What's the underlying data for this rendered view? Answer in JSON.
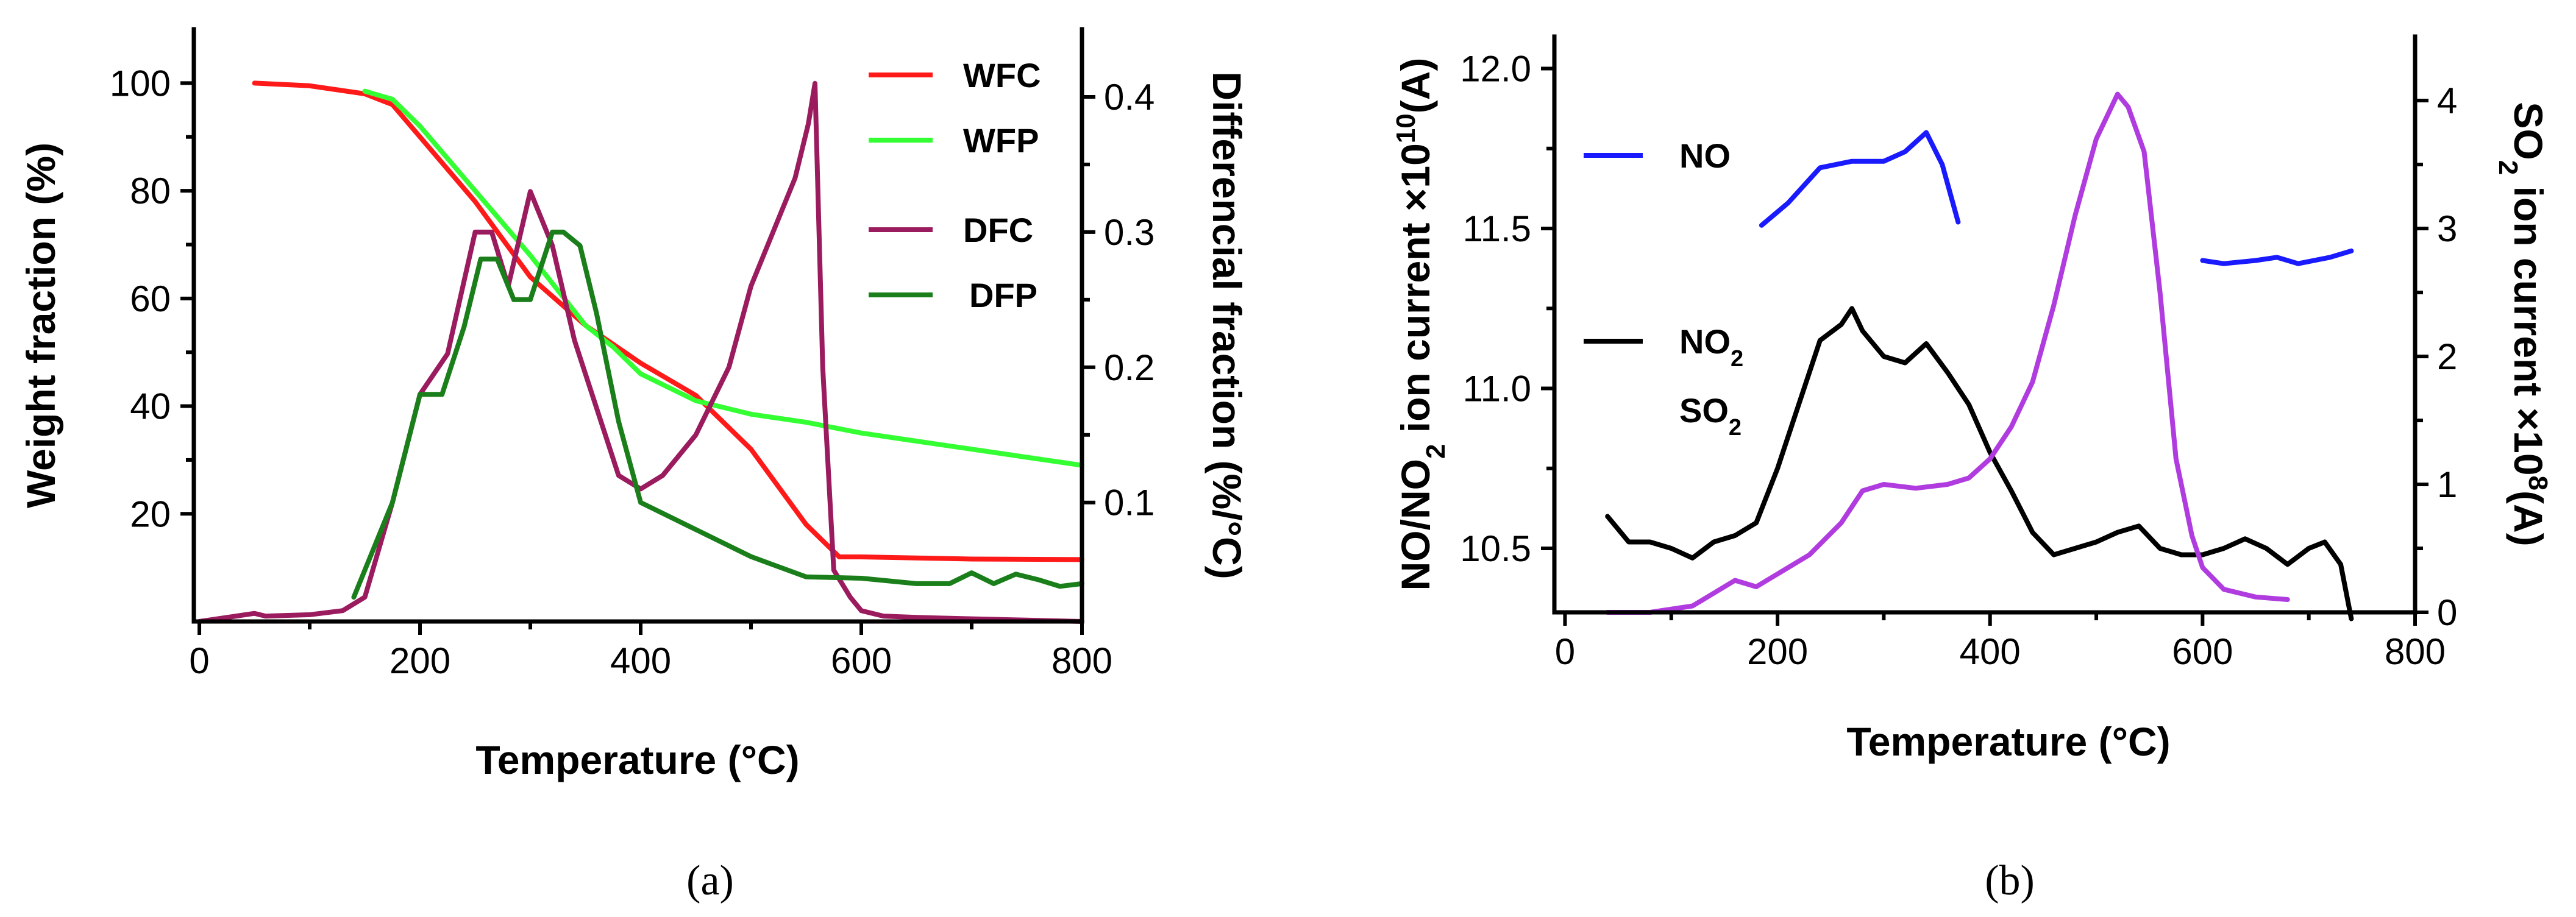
{
  "chart_data": [
    {
      "panel_label": "(a)",
      "type": "line",
      "xlabel": "Temperature (°C)",
      "ylabel": "Weight fraction (%)",
      "y2label": "Differencial fraction (%/°C)",
      "xlim": [
        -5,
        800
      ],
      "ylim": [
        0,
        110
      ],
      "y2lim": [
        0.012,
        0.45
      ],
      "xticks": [
        0,
        200,
        400,
        600,
        800
      ],
      "yticks": [
        20,
        40,
        60,
        80,
        100
      ],
      "y2ticks": [
        0.1,
        0.2,
        0.3,
        0.4
      ],
      "xtick_labels": [
        "0",
        "200",
        "400",
        "600",
        "800"
      ],
      "ytick_labels": [
        "20",
        "40",
        "60",
        "80",
        "100"
      ],
      "y2tick_labels": [
        "0.1",
        "0.2",
        "0.3",
        "0.4"
      ],
      "legend_position": "top-right",
      "series": [
        {
          "name": "WFC",
          "axis": "left",
          "color": "#ff1a1a",
          "x": [
            50,
            100,
            150,
            175,
            200,
            250,
            300,
            350,
            400,
            450,
            500,
            550,
            580,
            600,
            650,
            700,
            800
          ],
          "y": [
            100,
            99.5,
            98,
            96,
            90,
            78,
            64,
            55,
            48,
            42,
            32,
            18,
            12,
            12,
            11.8,
            11.6,
            11.5
          ]
        },
        {
          "name": "WFP",
          "axis": "left",
          "color": "#33ff33",
          "x": [
            150,
            175,
            200,
            250,
            300,
            350,
            375,
            400,
            450,
            500,
            550,
            600,
            650,
            700,
            750,
            800
          ],
          "y": [
            98.5,
            97,
            92,
            80,
            68,
            55,
            51,
            46,
            41,
            38.5,
            37,
            35,
            33.5,
            32,
            30.5,
            29
          ]
        },
        {
          "name": "DFC",
          "axis": "right",
          "color": "#9b1c5e",
          "x": [
            0,
            50,
            60,
            100,
            130,
            150,
            175,
            200,
            225,
            250,
            265,
            280,
            300,
            320,
            340,
            360,
            380,
            400,
            420,
            450,
            480,
            500,
            520,
            540,
            552,
            558,
            565,
            575,
            590,
            600,
            620,
            650,
            700,
            750,
            800
          ],
          "y": [
            0.012,
            0.018,
            0.016,
            0.017,
            0.02,
            0.03,
            0.1,
            0.18,
            0.21,
            0.3,
            0.3,
            0.26,
            0.33,
            0.29,
            0.22,
            0.17,
            0.12,
            0.11,
            0.12,
            0.15,
            0.2,
            0.26,
            0.3,
            0.34,
            0.38,
            0.41,
            0.2,
            0.05,
            0.03,
            0.02,
            0.016,
            0.015,
            0.014,
            0.013,
            0.012
          ]
        },
        {
          "name": "DFP",
          "axis": "right",
          "color": "#1a7f1a",
          "x": [
            140,
            175,
            200,
            220,
            240,
            255,
            270,
            285,
            300,
            320,
            330,
            345,
            360,
            380,
            400,
            450,
            500,
            550,
            600,
            650,
            680,
            700,
            720,
            740,
            760,
            780,
            800
          ],
          "y": [
            0.03,
            0.1,
            0.18,
            0.18,
            0.23,
            0.28,
            0.28,
            0.25,
            0.25,
            0.3,
            0.3,
            0.29,
            0.24,
            0.16,
            0.1,
            0.08,
            0.06,
            0.045,
            0.044,
            0.04,
            0.04,
            0.048,
            0.04,
            0.047,
            0.043,
            0.038,
            0.04
          ]
        }
      ]
    },
    {
      "panel_label": "(b)",
      "type": "line",
      "xlabel": "Temperature (°C)",
      "ylabel_parts": [
        "NO/NO",
        "2",
        " ion current ×10",
        "10",
        "(A)"
      ],
      "y2label_parts": [
        "SO",
        "2",
        " ion current ×10",
        "8",
        "(A)"
      ],
      "xlim": [
        -10,
        800
      ],
      "ylim": [
        10.3,
        12.1
      ],
      "y2lim": [
        0,
        4.5
      ],
      "xticks": [
        0,
        200,
        400,
        600,
        800
      ],
      "yticks": [
        10.5,
        11.0,
        11.5,
        12.0
      ],
      "y2ticks": [
        0,
        1,
        2,
        3,
        4
      ],
      "xtick_labels": [
        "0",
        "200",
        "400",
        "600",
        "800"
      ],
      "ytick_labels": [
        "10.5",
        "11.0",
        "11.5",
        "12.0"
      ],
      "y2tick_labels": [
        "0",
        "1",
        "2",
        "3",
        "4"
      ],
      "legend_position": "left",
      "legend": [
        {
          "label_main": "NO",
          "label_sub": "",
          "color": "#1a1aff",
          "has_line": true
        },
        {
          "label_main": "NO",
          "label_sub": "2",
          "color": "#000000",
          "has_line": true
        },
        {
          "label_main": "SO",
          "label_sub": "2",
          "color": "#b03ce0",
          "has_line": false
        }
      ],
      "series": [
        {
          "name": "NO",
          "axis": "left",
          "color": "#1a1aff",
          "segments": [
            {
              "x": [
                185,
                210,
                240,
                270,
                300,
                320,
                340,
                355,
                370
              ],
              "y": [
                11.51,
                11.58,
                11.69,
                11.71,
                11.71,
                11.74,
                11.8,
                11.7,
                11.52
              ]
            },
            {
              "x": [
                600,
                620,
                650,
                670,
                690,
                720,
                740
              ],
              "y": [
                11.4,
                11.39,
                11.4,
                11.41,
                11.39,
                11.41,
                11.43
              ]
            }
          ]
        },
        {
          "name": "NO2",
          "axis": "left",
          "color": "#000000",
          "x": [
            40,
            60,
            80,
            100,
            120,
            140,
            160,
            180,
            200,
            220,
            240,
            260,
            270,
            280,
            300,
            320,
            340,
            360,
            380,
            400,
            420,
            440,
            460,
            480,
            500,
            520,
            540,
            560,
            580,
            600,
            620,
            640,
            660,
            680,
            700,
            715,
            730,
            740
          ],
          "y": [
            10.6,
            10.52,
            10.52,
            10.5,
            10.47,
            10.52,
            10.54,
            10.58,
            10.75,
            10.95,
            11.15,
            11.2,
            11.25,
            11.18,
            11.1,
            11.08,
            11.14,
            11.05,
            10.95,
            10.8,
            10.68,
            10.55,
            10.48,
            10.5,
            10.52,
            10.55,
            10.57,
            10.5,
            10.48,
            10.48,
            10.5,
            10.53,
            10.5,
            10.45,
            10.5,
            10.52,
            10.45,
            10.28
          ]
        },
        {
          "name": "SO2",
          "axis": "right",
          "color": "#b03ce0",
          "x": [
            40,
            80,
            120,
            140,
            160,
            180,
            200,
            230,
            260,
            280,
            300,
            330,
            360,
            380,
            400,
            420,
            440,
            460,
            480,
            500,
            520,
            530,
            545,
            560,
            575,
            590,
            600,
            620,
            650,
            680
          ],
          "y": [
            0,
            0,
            0.05,
            0.15,
            0.25,
            0.2,
            0.3,
            0.45,
            0.7,
            0.95,
            1.0,
            0.97,
            1.0,
            1.05,
            1.2,
            1.45,
            1.8,
            2.4,
            3.1,
            3.7,
            4.05,
            3.95,
            3.6,
            2.5,
            1.2,
            0.6,
            0.35,
            0.18,
            0.12,
            0.1
          ]
        }
      ]
    }
  ]
}
